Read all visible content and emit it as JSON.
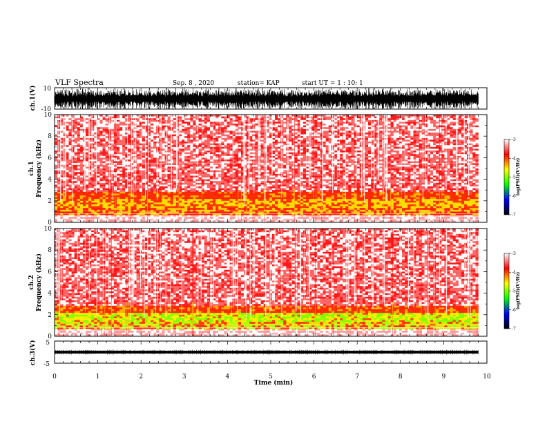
{
  "header": {
    "title": "VLF Spectra",
    "date": "Sep. 8 , 2020",
    "station": "station= KAP",
    "start": "start UT =  1 : 10: 1"
  },
  "chart_data": [
    {
      "type": "line",
      "name": "ch1-waveform",
      "ylabel": "ch.1(V)",
      "ylim": [
        -10,
        10
      ],
      "yticks": [
        "10",
        "-10"
      ],
      "xlim": [
        0,
        10
      ],
      "trace_color": "#000000"
    },
    {
      "type": "heatmap",
      "name": "ch1-spectrogram",
      "ylabel": "ch.1\nFrequency (kHz)",
      "ylabel_lines": [
        "ch.1",
        "Frequency (kHz)"
      ],
      "ylim": [
        0,
        10
      ],
      "yticks": [
        "0",
        "2",
        "4",
        "6",
        "8",
        "10"
      ],
      "xlim": [
        0,
        10
      ],
      "data_extent_min": 9.8,
      "colorbar": {
        "label": "log(PSD)(V²/Hz)",
        "range": [
          -7,
          -3
        ],
        "ticks": [
          "-3",
          "-4",
          "-5",
          "-6",
          "-7"
        ],
        "colors": [
          "#ffffff",
          "#ff0000",
          "#ffff00",
          "#00ff00",
          "#0000ff",
          "#000000"
        ]
      }
    },
    {
      "type": "heatmap",
      "name": "ch2-spectrogram",
      "ylabel": "ch.2\nFrequency (kHz)",
      "ylabel_lines": [
        "ch.2",
        "Frequency (kHz)"
      ],
      "ylim": [
        0,
        10
      ],
      "yticks": [
        "0",
        "2",
        "4",
        "6",
        "8",
        "10"
      ],
      "xlim": [
        0,
        10
      ],
      "data_extent_min": 9.8,
      "colorbar": {
        "label": "log(PSD)(V²/Hz)",
        "range": [
          -7,
          -3
        ],
        "ticks": [
          "-3",
          "-4",
          "-5",
          "-6",
          "-7"
        ],
        "colors": [
          "#ffffff",
          "#ff0000",
          "#ffff00",
          "#00ff00",
          "#0000ff",
          "#000000"
        ]
      }
    },
    {
      "type": "line",
      "name": "ch3-waveform",
      "ylabel": "ch.3(V)",
      "ylim": [
        -5,
        5
      ],
      "yticks": [
        "5",
        "-5"
      ],
      "xlim": [
        0,
        10
      ],
      "trace_color": "#000000"
    }
  ],
  "xaxis": {
    "label": "Time (min)",
    "ticks": [
      "0",
      "1",
      "2",
      "3",
      "4",
      "5",
      "6",
      "7",
      "8",
      "9",
      "10"
    ],
    "range": [
      0,
      10
    ]
  }
}
